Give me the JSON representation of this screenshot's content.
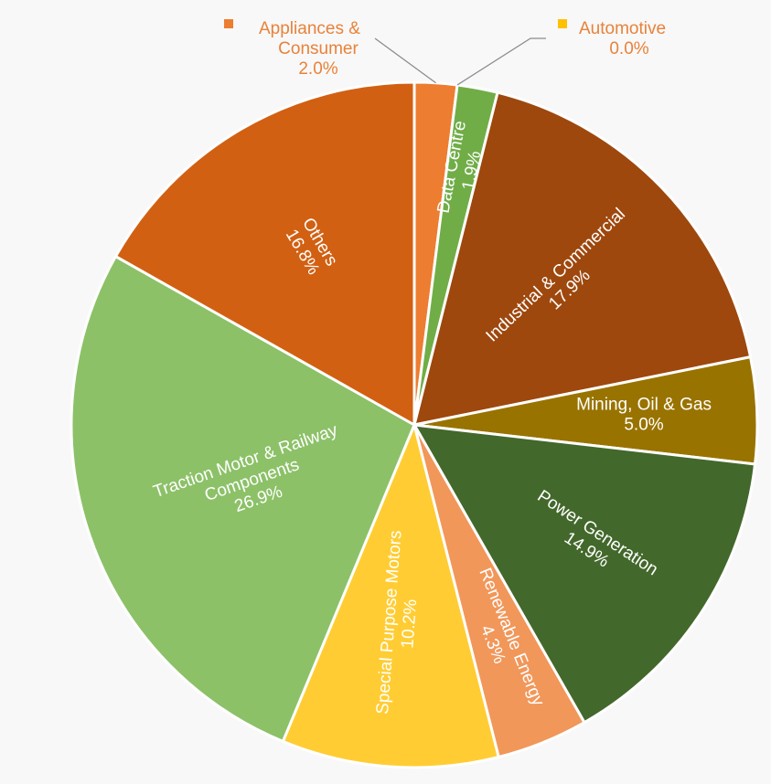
{
  "chart_data": {
    "type": "pie",
    "title": "",
    "unit": "%",
    "start_angle_deg": 0,
    "direction": "clockwise",
    "slices": [
      {
        "name": "Appliances & Consumer",
        "value": 2.0,
        "value_label": "2.0%",
        "color": "#ED7D31",
        "label_lines": [
          "Appliances &",
          "Consumer",
          "2.0%"
        ],
        "label_mode": "outside",
        "label_anchor": "start"
      },
      {
        "name": "Automotive",
        "value": 0.0,
        "value_label": "0.0%",
        "color": "#FFC000",
        "label_lines": [
          "Automotive",
          "0.0%"
        ],
        "label_mode": "outside",
        "label_anchor": "start"
      },
      {
        "name": "Data Centre",
        "value": 1.9,
        "value_label": "1.9%",
        "color": "#70AD47",
        "label_lines": [
          "Data Centre",
          "1.9%"
        ],
        "label_mode": "inside",
        "label_rotation": "radial"
      },
      {
        "name": "Industrial & Commercial",
        "value": 17.9,
        "value_label": "17.9%",
        "color": "#9E480E",
        "label_lines": [
          "Industrial & Commercial",
          "17.9%"
        ],
        "label_mode": "inside",
        "label_rotation": "radial"
      },
      {
        "name": "Mining, Oil & Gas",
        "value": 5.0,
        "value_label": "5.0%",
        "color": "#997300",
        "label_lines": [
          "Mining, Oil & Gas",
          "5.0%"
        ],
        "label_mode": "inside",
        "label_rotation": "horizontal"
      },
      {
        "name": "Power Generation",
        "value": 14.9,
        "value_label": "14.9%",
        "color": "#43682B",
        "label_lines": [
          "Power Generation",
          "14.9%"
        ],
        "label_mode": "inside",
        "label_rotation": "radial"
      },
      {
        "name": "Renewable Energy",
        "value": 4.3,
        "value_label": "4.3%",
        "color": "#F1975A",
        "label_lines": [
          "Renewable Energy",
          "4.3%"
        ],
        "label_mode": "inside",
        "label_rotation": "radial"
      },
      {
        "name": "Special Purpose Motors",
        "value": 10.2,
        "value_label": "10.2%",
        "color": "#FFCD33",
        "label_lines": [
          "Special Purpose Motors",
          "10.2%"
        ],
        "label_mode": "inside",
        "label_rotation": "radial"
      },
      {
        "name": "Traction Motor & Railway Components",
        "value": 26.9,
        "value_label": "26.9%",
        "color": "#8CC168",
        "label_lines": [
          "Traction Motor & Railway",
          "Components",
          "26.9%"
        ],
        "label_mode": "inside",
        "label_rotation": "radial"
      },
      {
        "name": "Others",
        "value": 16.8,
        "value_label": "16.8%",
        "color": "#D26012",
        "label_lines": [
          "Others",
          "16.8%"
        ],
        "label_mode": "inside",
        "label_rotation": "radial"
      }
    ]
  }
}
